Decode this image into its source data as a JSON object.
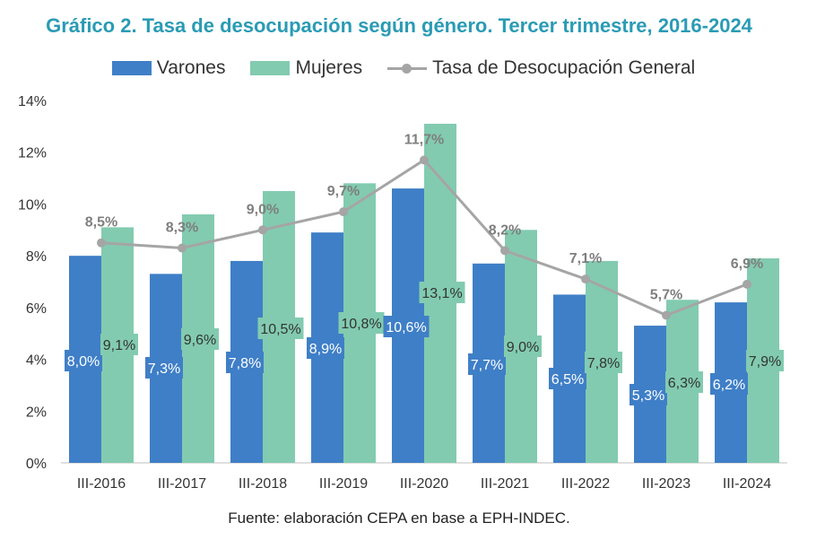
{
  "chart_data": {
    "type": "bar",
    "title": "Gráfico 2. Tasa de desocupación según género. Tercer trimestre, 2016-2024",
    "categories": [
      "III-2016",
      "III-2017",
      "III-2018",
      "III-2019",
      "III-2020",
      "III-2021",
      "III-2022",
      "III-2023",
      "III-2024"
    ],
    "series": [
      {
        "name": "Varones",
        "type": "bar",
        "color": "#3f7fc7",
        "values": [
          8.0,
          7.3,
          7.8,
          8.9,
          10.6,
          7.7,
          6.5,
          5.3,
          6.2
        ],
        "labels": [
          "8,0%",
          "7,3%",
          "7,8%",
          "8,9%",
          "10,6%",
          "7,7%",
          "6,5%",
          "5,3%",
          "6,2%"
        ]
      },
      {
        "name": "Mujeres",
        "type": "bar",
        "color": "#82cbb0",
        "values": [
          9.1,
          9.6,
          10.5,
          10.8,
          13.1,
          9.0,
          7.8,
          6.3,
          7.9
        ],
        "labels": [
          "9,1%",
          "9,6%",
          "10,5%",
          "10,8%",
          "13,1%",
          "9,0%",
          "7,8%",
          "6,3%",
          "7,9%"
        ]
      },
      {
        "name": "Tasa de Desocupación General",
        "type": "line",
        "color": "#a5a5a5",
        "values": [
          8.5,
          8.3,
          9.0,
          9.7,
          11.7,
          8.2,
          7.1,
          5.7,
          6.9
        ],
        "labels": [
          "8,5%",
          "8,3%",
          "9,0%",
          "9,7%",
          "11,7%",
          "8,2%",
          "7,1%",
          "5,7%",
          "6,9%"
        ]
      }
    ],
    "yticks": [
      "0%",
      "2%",
      "4%",
      "6%",
      "8%",
      "10%",
      "12%",
      "14%"
    ],
    "ylim": [
      0,
      14
    ],
    "legend_position": "top-center",
    "grid": false
  },
  "source": "Fuente: elaboración CEPA en base a EPH-INDEC."
}
